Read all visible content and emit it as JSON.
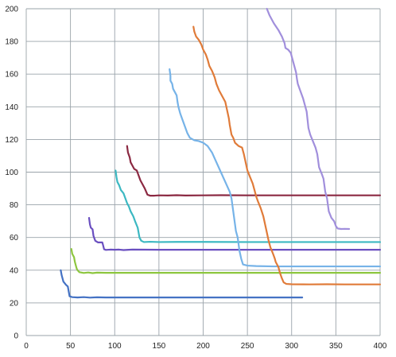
{
  "chart_data": {
    "type": "line",
    "title": "",
    "xlabel": "",
    "ylabel": "",
    "xlim": [
      0,
      400
    ],
    "ylim": [
      0,
      200
    ],
    "x_ticks": [
      0,
      50,
      100,
      150,
      200,
      250,
      300,
      350,
      400
    ],
    "y_ticks": [
      0,
      20,
      40,
      60,
      80,
      100,
      120,
      140,
      160,
      180,
      200
    ],
    "x_tick_labels": [
      "0",
      "50",
      "100",
      "150",
      "200",
      "250",
      "300",
      "350",
      "400"
    ],
    "y_tick_labels": [
      "0",
      "20",
      "40",
      "60",
      "80",
      "100",
      "120",
      "140",
      "160",
      "180",
      "200"
    ],
    "grid": true,
    "legend": "none",
    "series": [
      {
        "color": "#4472c4",
        "points": [
          [
            39,
            40
          ],
          [
            40,
            37
          ],
          [
            42,
            33
          ],
          [
            45,
            31
          ],
          [
            47,
            30
          ],
          [
            48,
            27
          ],
          [
            49,
            24
          ],
          [
            52,
            23.5
          ],
          [
            58,
            23.3
          ],
          [
            65,
            23.5
          ],
          [
            72,
            23.2
          ],
          [
            80,
            23.4
          ],
          [
            90,
            23.3
          ],
          [
            100,
            23.3
          ],
          [
            150,
            23.3
          ],
          [
            200,
            23.3
          ],
          [
            250,
            23.3
          ],
          [
            300,
            23.3
          ],
          [
            312,
            23.3
          ]
        ]
      },
      {
        "color": "#8dc63f",
        "points": [
          [
            51,
            53
          ],
          [
            52,
            50
          ],
          [
            54,
            48
          ],
          [
            55,
            45
          ],
          [
            56,
            43
          ],
          [
            57,
            41
          ],
          [
            58,
            40
          ],
          [
            60,
            38.8
          ],
          [
            65,
            38.3
          ],
          [
            70,
            38.6
          ],
          [
            75,
            38.2
          ],
          [
            80,
            38.5
          ],
          [
            90,
            38.4
          ],
          [
            100,
            38.4
          ],
          [
            150,
            38.4
          ],
          [
            200,
            38.4
          ],
          [
            250,
            38.4
          ],
          [
            300,
            38.4
          ],
          [
            350,
            38.4
          ],
          [
            400,
            38.4
          ]
        ]
      },
      {
        "color": "#6a4fc0",
        "points": [
          [
            71,
            72
          ],
          [
            72,
            68
          ],
          [
            73,
            66
          ],
          [
            75,
            65
          ],
          [
            76,
            61
          ],
          [
            78,
            58
          ],
          [
            81,
            57
          ],
          [
            86,
            57
          ],
          [
            87,
            55
          ],
          [
            88,
            52.8
          ],
          [
            90,
            52.4
          ],
          [
            95,
            52.6
          ],
          [
            100,
            52.5
          ],
          [
            105,
            52.6
          ],
          [
            110,
            52.3
          ],
          [
            120,
            52.6
          ],
          [
            150,
            52.5
          ],
          [
            200,
            52.5
          ],
          [
            250,
            52.5
          ],
          [
            300,
            52.5
          ],
          [
            350,
            52.5
          ],
          [
            400,
            52.5
          ]
        ]
      },
      {
        "color": "#3cb8c2",
        "points": [
          [
            101,
            101
          ],
          [
            102,
            97
          ],
          [
            103,
            94
          ],
          [
            105,
            92
          ],
          [
            107,
            89
          ],
          [
            110,
            87
          ],
          [
            112,
            84
          ],
          [
            114,
            81
          ],
          [
            116,
            79
          ],
          [
            118,
            76
          ],
          [
            121,
            73
          ],
          [
            123,
            70
          ],
          [
            126,
            66
          ],
          [
            127,
            63
          ],
          [
            128,
            60
          ],
          [
            130,
            58
          ],
          [
            133,
            57.2
          ],
          [
            140,
            57.4
          ],
          [
            150,
            57.2
          ],
          [
            170,
            57.3
          ],
          [
            200,
            57.3
          ],
          [
            250,
            57.2
          ],
          [
            300,
            57.2
          ],
          [
            350,
            57.2
          ],
          [
            400,
            57.2
          ]
        ]
      },
      {
        "color": "#8b2942",
        "points": [
          [
            114,
            116
          ],
          [
            115,
            112
          ],
          [
            117,
            109
          ],
          [
            118,
            106
          ],
          [
            120,
            104
          ],
          [
            122,
            102
          ],
          [
            125,
            101
          ],
          [
            127,
            98
          ],
          [
            129,
            95
          ],
          [
            131,
            93
          ],
          [
            134,
            90
          ],
          [
            137,
            86.2
          ],
          [
            140,
            85.6
          ],
          [
            145,
            85.6
          ],
          [
            150,
            85.8
          ],
          [
            160,
            85.7
          ],
          [
            170,
            85.9
          ],
          [
            180,
            85.7
          ],
          [
            200,
            85.8
          ],
          [
            220,
            85.9
          ],
          [
            250,
            85.8
          ],
          [
            300,
            85.8
          ],
          [
            350,
            85.8
          ],
          [
            400,
            85.8
          ]
        ]
      },
      {
        "color": "#76b3e8",
        "points": [
          [
            162,
            163
          ],
          [
            163,
            159
          ],
          [
            163,
            156
          ],
          [
            165,
            154
          ],
          [
            166,
            151
          ],
          [
            168,
            149
          ],
          [
            170,
            147
          ],
          [
            171,
            143
          ],
          [
            172,
            140
          ],
          [
            174,
            136
          ],
          [
            176,
            133
          ],
          [
            178,
            130
          ],
          [
            180,
            127
          ],
          [
            182,
            124
          ],
          [
            185,
            121
          ],
          [
            190,
            119.5
          ],
          [
            195,
            119
          ],
          [
            200,
            118
          ],
          [
            205,
            116
          ],
          [
            210,
            112
          ],
          [
            215,
            106
          ],
          [
            220,
            100
          ],
          [
            225,
            94
          ],
          [
            230,
            88
          ],
          [
            232,
            84
          ],
          [
            233,
            80
          ],
          [
            234,
            76
          ],
          [
            235,
            72
          ],
          [
            236,
            68
          ],
          [
            237,
            64
          ],
          [
            239,
            60
          ],
          [
            240,
            56
          ],
          [
            241,
            52
          ],
          [
            243,
            47
          ],
          [
            245,
            43.5
          ],
          [
            250,
            42.8
          ],
          [
            260,
            42.5
          ],
          [
            280,
            42.3
          ],
          [
            300,
            42.3
          ],
          [
            350,
            42.3
          ],
          [
            400,
            42.3
          ]
        ]
      },
      {
        "color": "#e07b39",
        "points": [
          [
            189,
            189
          ],
          [
            190,
            186
          ],
          [
            192,
            183
          ],
          [
            195,
            181
          ],
          [
            198,
            178
          ],
          [
            200,
            175
          ],
          [
            203,
            172
          ],
          [
            205,
            169
          ],
          [
            207,
            165
          ],
          [
            210,
            162
          ],
          [
            213,
            158
          ],
          [
            215,
            154
          ],
          [
            218,
            150
          ],
          [
            222,
            146
          ],
          [
            225,
            143
          ],
          [
            227,
            138
          ],
          [
            229,
            133
          ],
          [
            230,
            129
          ],
          [
            231,
            126
          ],
          [
            232,
            123
          ],
          [
            234,
            121
          ],
          [
            236,
            118
          ],
          [
            240,
            116
          ],
          [
            244,
            115
          ],
          [
            246,
            111
          ],
          [
            248,
            106
          ],
          [
            250,
            101
          ],
          [
            253,
            97
          ],
          [
            256,
            93
          ],
          [
            258,
            89
          ],
          [
            260,
            85
          ],
          [
            262,
            82
          ],
          [
            265,
            78
          ],
          [
            268,
            73
          ],
          [
            270,
            68
          ],
          [
            272,
            63
          ],
          [
            274,
            58
          ],
          [
            276,
            54
          ],
          [
            279,
            50
          ],
          [
            281,
            47
          ],
          [
            282,
            45
          ],
          [
            285,
            42
          ],
          [
            287,
            38
          ],
          [
            289,
            35
          ],
          [
            291,
            32.5
          ],
          [
            294,
            31.6
          ],
          [
            300,
            31.4
          ],
          [
            320,
            31.3
          ],
          [
            340,
            31.4
          ],
          [
            360,
            31.3
          ],
          [
            380,
            31.3
          ],
          [
            400,
            31.3
          ]
        ]
      },
      {
        "color": "#a18fdc",
        "points": [
          [
            272,
            200
          ],
          [
            275,
            196
          ],
          [
            280,
            191
          ],
          [
            285,
            187
          ],
          [
            289,
            183
          ],
          [
            292,
            179
          ],
          [
            293,
            176
          ],
          [
            296,
            175
          ],
          [
            299,
            173
          ],
          [
            301,
            169
          ],
          [
            303,
            165
          ],
          [
            305,
            161
          ],
          [
            306,
            157
          ],
          [
            307,
            154
          ],
          [
            309,
            151
          ],
          [
            311,
            148
          ],
          [
            313,
            145
          ],
          [
            315,
            141
          ],
          [
            317,
            137
          ],
          [
            318,
            132
          ],
          [
            319,
            127
          ],
          [
            321,
            123
          ],
          [
            324,
            119
          ],
          [
            327,
            115
          ],
          [
            329,
            111
          ],
          [
            330,
            107
          ],
          [
            331,
            103
          ],
          [
            334,
            99
          ],
          [
            336,
            96
          ],
          [
            337,
            92
          ],
          [
            338,
            88
          ],
          [
            340,
            84
          ],
          [
            341,
            80
          ],
          [
            342,
            76
          ],
          [
            345,
            72
          ],
          [
            348,
            70
          ],
          [
            350,
            67
          ],
          [
            352,
            65.5
          ],
          [
            356,
            65.2
          ],
          [
            360,
            65.3
          ],
          [
            365,
            65.2
          ]
        ]
      }
    ]
  }
}
